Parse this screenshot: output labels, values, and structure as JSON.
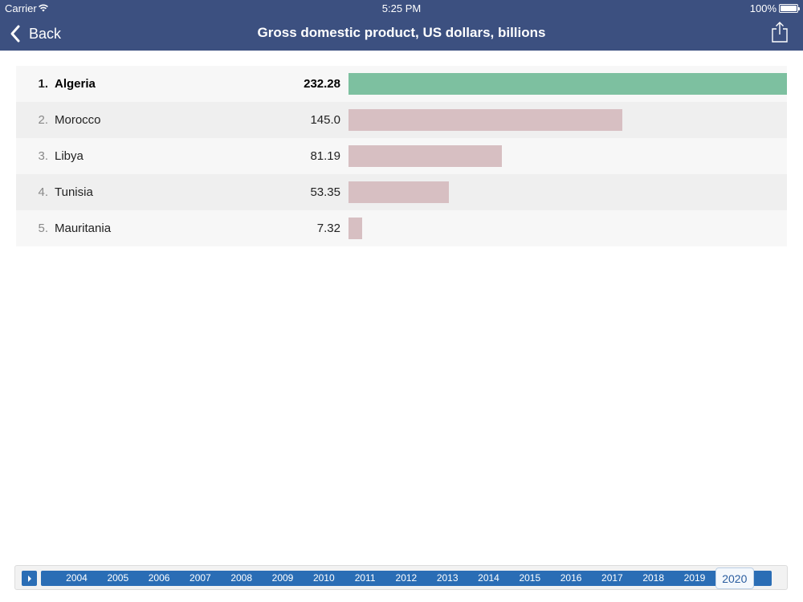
{
  "status_bar": {
    "carrier": "Carrier",
    "time": "5:25 PM",
    "battery": "100%"
  },
  "nav": {
    "back_label": "Back",
    "title": "Gross domestic product, US dollars, billions"
  },
  "chart_data": {
    "type": "bar",
    "title": "Gross domestic product, US dollars, billions",
    "categories": [
      "Algeria",
      "Morocco",
      "Libya",
      "Tunisia",
      "Mauritania"
    ],
    "values": [
      232.28,
      145.0,
      81.19,
      53.35,
      7.32
    ],
    "value_labels": [
      "232.28",
      "145.0",
      "81.19",
      "53.35",
      "7.32"
    ],
    "ranks": [
      "1.",
      "2.",
      "3.",
      "4.",
      "5."
    ],
    "selected_index": 0,
    "colors": {
      "selected": "#7dc0a0",
      "other": "#d7bfc2"
    }
  },
  "timeline": {
    "years": [
      "2004",
      "2005",
      "2006",
      "2007",
      "2008",
      "2009",
      "2010",
      "2011",
      "2012",
      "2013",
      "2014",
      "2015",
      "2016",
      "2017",
      "2018",
      "2019",
      "2020"
    ],
    "selected": "2020"
  }
}
